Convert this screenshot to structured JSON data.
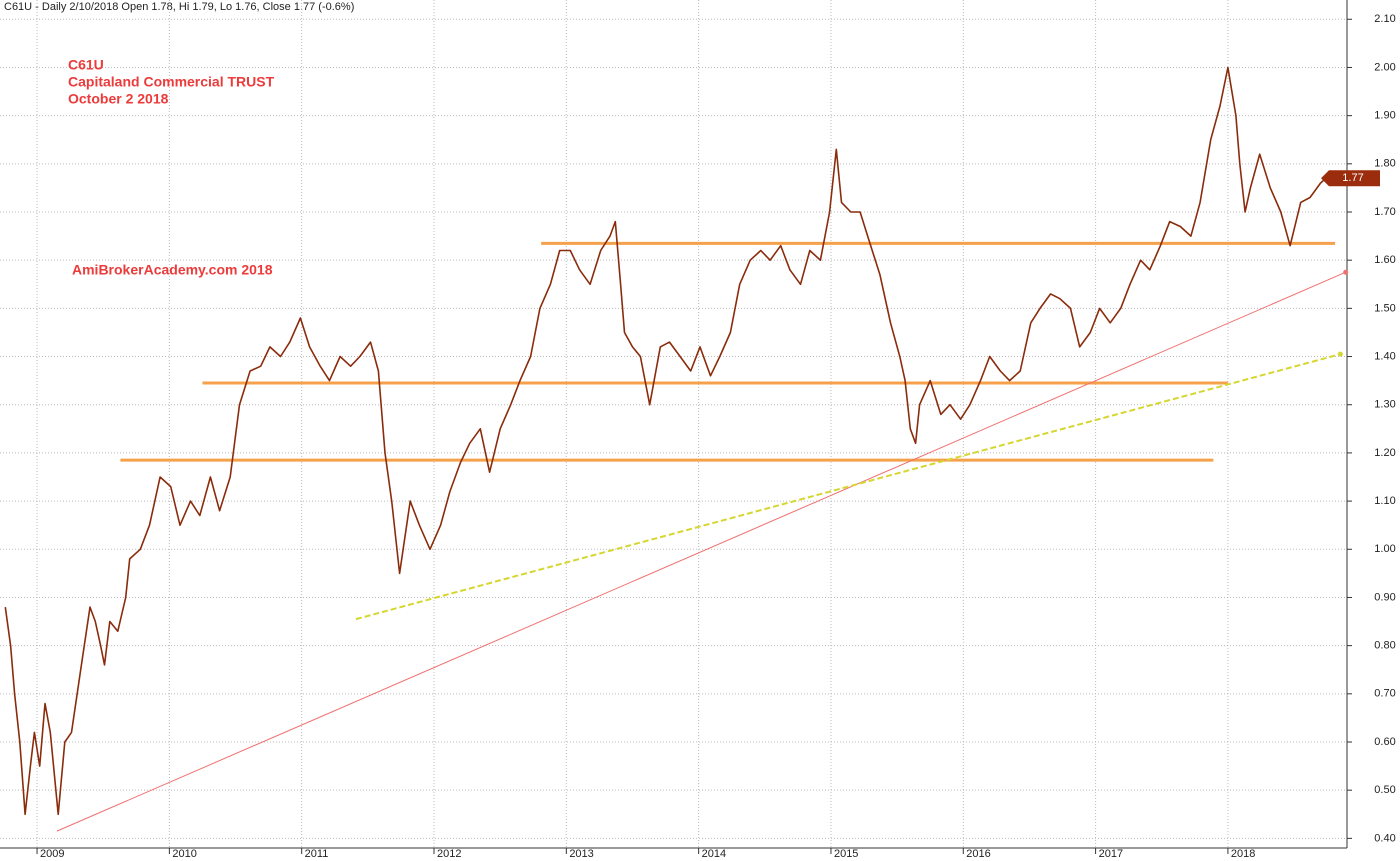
{
  "chart_data": {
    "type": "line",
    "title": "C61U - Daily 2/10/2018 Open 1.78, Hi 1.79, Lo 1.76, Close 1.77 (-0.6%)",
    "annotations": [
      "C61U",
      "Capitaland Commercial TRUST",
      "October 2 2018",
      "AmiBrokerAcademy.com 2018"
    ],
    "annotation_color": "#ec3b3b",
    "last_price": 1.77,
    "last_price_color": "#9c2d0c",
    "grid": true,
    "xlim": [
      2008.72,
      2018.9
    ],
    "xticks": [
      2009,
      2010,
      2011,
      2012,
      2013,
      2014,
      2015,
      2016,
      2017,
      2018
    ],
    "ylim": [
      0.38,
      2.14
    ],
    "yticks": [
      {
        "value": 0.4,
        "label": "0.40"
      },
      {
        "value": 0.5,
        "label": "0.50"
      },
      {
        "value": 0.6,
        "label": "0.60"
      },
      {
        "value": 0.7,
        "label": "0.70"
      },
      {
        "value": 0.8,
        "label": "0.80"
      },
      {
        "value": 0.9,
        "label": "0.90"
      },
      {
        "value": 1.0,
        "label": "1.00"
      },
      {
        "value": 1.1,
        "label": "1.10"
      },
      {
        "value": 1.2,
        "label": "1.20"
      },
      {
        "value": 1.3,
        "label": "1.30"
      },
      {
        "value": 1.4,
        "label": "1.40"
      },
      {
        "value": 1.5,
        "label": "1.50"
      },
      {
        "value": 1.6,
        "label": "1.60"
      },
      {
        "value": 1.7,
        "label": "1.70"
      },
      {
        "value": 1.8,
        "label": "1.80"
      },
      {
        "value": 1.9,
        "label": "1.90"
      },
      {
        "value": 2.0,
        "label": "2.00"
      },
      {
        "value": 2.1,
        "label": "2.10"
      }
    ],
    "series": [
      {
        "name": "C61U",
        "color": "#8a2c0c",
        "x": [
          2008.76,
          2008.8,
          2008.83,
          2008.87,
          2008.91,
          2008.95,
          2008.98,
          2009.02,
          2009.06,
          2009.1,
          2009.16,
          2009.21,
          2009.26,
          2009.33,
          2009.4,
          2009.44,
          2009.48,
          2009.51,
          2009.55,
          2009.61,
          2009.67,
          2009.7,
          2009.78,
          2009.85,
          2009.93,
          2010.01,
          2010.08,
          2010.16,
          2010.23,
          2010.31,
          2010.38,
          2010.46,
          2010.53,
          2010.61,
          2010.69,
          2010.76,
          2010.84,
          2010.91,
          2010.99,
          2011.06,
          2011.14,
          2011.21,
          2011.29,
          2011.37,
          2011.44,
          2011.52,
          2011.58,
          2011.63,
          2011.68,
          2011.74,
          2011.82,
          2011.89,
          2011.97,
          2012.05,
          2012.12,
          2012.2,
          2012.27,
          2012.35,
          2012.42,
          2012.5,
          2012.58,
          2012.65,
          2012.73,
          2012.8,
          2012.88,
          2012.95,
          2013.03,
          2013.1,
          2013.18,
          2013.26,
          2013.33,
          2013.37,
          2013.41,
          2013.44,
          2013.5,
          2013.56,
          2013.63,
          2013.71,
          2013.78,
          2013.86,
          2013.94,
          2014.01,
          2014.09,
          2014.16,
          2014.24,
          2014.31,
          2014.39,
          2014.47,
          2014.54,
          2014.62,
          2014.69,
          2014.77,
          2014.84,
          2014.92,
          2014.99,
          2015.04,
          2015.08,
          2015.15,
          2015.22,
          2015.3,
          2015.37,
          2015.45,
          2015.52,
          2015.56,
          2015.6,
          2015.64,
          2015.67,
          2015.75,
          2015.83,
          2015.9,
          2015.98,
          2016.05,
          2016.13,
          2016.2,
          2016.28,
          2016.35,
          2016.43,
          2016.51,
          2016.58,
          2016.66,
          2016.73,
          2016.81,
          2016.88,
          2016.96,
          2017.03,
          2017.11,
          2017.19,
          2017.26,
          2017.34,
          2017.41,
          2017.49,
          2017.56,
          2017.64,
          2017.72,
          2017.79,
          2017.87,
          2017.94,
          2018.0,
          2018.06,
          2018.09,
          2018.13,
          2018.17,
          2018.24,
          2018.32,
          2018.4,
          2018.47,
          2018.55,
          2018.62,
          2018.7,
          2018.74
        ],
        "values": [
          0.88,
          0.8,
          0.7,
          0.6,
          0.45,
          0.55,
          0.62,
          0.55,
          0.68,
          0.62,
          0.45,
          0.6,
          0.62,
          0.75,
          0.88,
          0.85,
          0.8,
          0.76,
          0.85,
          0.83,
          0.9,
          0.98,
          1.0,
          1.05,
          1.15,
          1.13,
          1.05,
          1.1,
          1.07,
          1.15,
          1.08,
          1.15,
          1.3,
          1.37,
          1.38,
          1.42,
          1.4,
          1.43,
          1.48,
          1.42,
          1.38,
          1.35,
          1.4,
          1.38,
          1.4,
          1.43,
          1.37,
          1.2,
          1.1,
          0.95,
          1.1,
          1.05,
          1.0,
          1.05,
          1.12,
          1.18,
          1.22,
          1.25,
          1.16,
          1.25,
          1.3,
          1.35,
          1.4,
          1.5,
          1.55,
          1.62,
          1.62,
          1.58,
          1.55,
          1.62,
          1.65,
          1.68,
          1.55,
          1.45,
          1.42,
          1.4,
          1.3,
          1.42,
          1.43,
          1.4,
          1.37,
          1.42,
          1.36,
          1.4,
          1.45,
          1.55,
          1.6,
          1.62,
          1.6,
          1.63,
          1.58,
          1.55,
          1.62,
          1.6,
          1.7,
          1.83,
          1.72,
          1.7,
          1.7,
          1.63,
          1.57,
          1.47,
          1.4,
          1.35,
          1.25,
          1.22,
          1.3,
          1.35,
          1.28,
          1.3,
          1.27,
          1.3,
          1.35,
          1.4,
          1.37,
          1.35,
          1.37,
          1.47,
          1.5,
          1.53,
          1.52,
          1.5,
          1.42,
          1.45,
          1.5,
          1.47,
          1.5,
          1.55,
          1.6,
          1.58,
          1.63,
          1.68,
          1.67,
          1.65,
          1.72,
          1.85,
          1.92,
          2.0,
          1.9,
          1.8,
          1.7,
          1.75,
          1.82,
          1.75,
          1.7,
          1.63,
          1.72,
          1.73,
          1.76,
          1.77
        ]
      }
    ],
    "levels": [
      {
        "value": 1.635,
        "x": [
          2012.81,
          2018.81
        ]
      },
      {
        "value": 1.345,
        "x": [
          2010.25,
          2018.0
        ]
      },
      {
        "value": 1.185,
        "x": [
          2009.63,
          2017.89
        ]
      }
    ],
    "level_color": "#f5a04a",
    "trendlines": [
      {
        "x": [
          2009.15,
          2018.89
        ],
        "values": [
          0.415,
          1.575
        ],
        "color": "#f07070",
        "dashed": false
      },
      {
        "x": [
          2011.41,
          2018.85
        ],
        "values": [
          0.855,
          1.405
        ],
        "color": "#d6d630",
        "dashed": true
      }
    ]
  }
}
